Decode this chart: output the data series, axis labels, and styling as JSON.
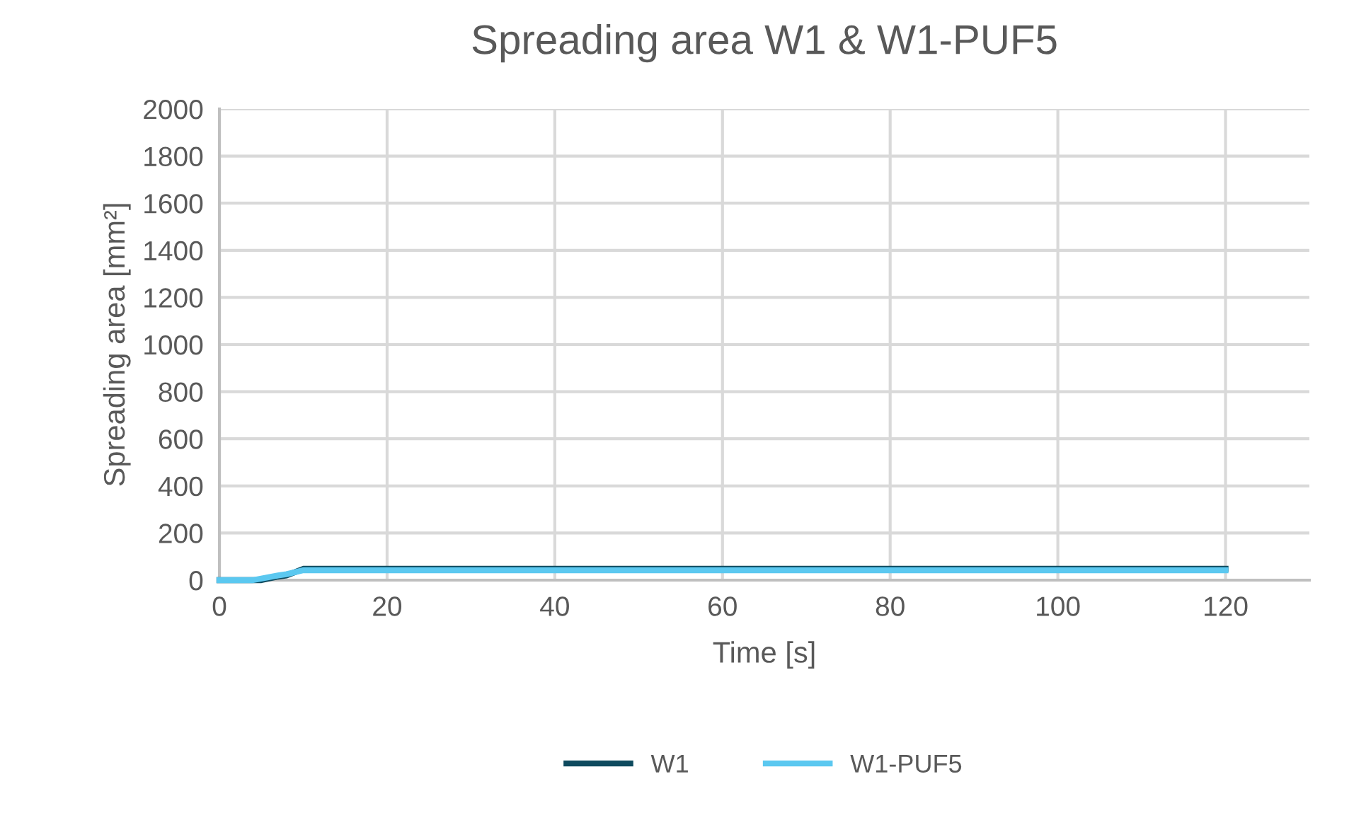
{
  "chart_data": {
    "type": "line",
    "title": "Spreading area W1 & W1-PUF5",
    "xlabel": "Time [s]",
    "ylabel": "Spreading area [mm²]",
    "xlim": [
      0,
      130
    ],
    "xticks": [
      0,
      20,
      40,
      60,
      80,
      100,
      120
    ],
    "ylim": [
      0,
      2000
    ],
    "yticks": [
      0,
      200,
      400,
      600,
      800,
      1000,
      1200,
      1400,
      1600,
      1800,
      2000
    ],
    "grid": true,
    "legend": "bottom",
    "marker": "none",
    "line_style": "solid",
    "series": [
      {
        "name": "W1",
        "color": "#0e4a5e",
        "x": [
          0,
          5,
          7,
          8,
          10,
          120
        ],
        "values": [
          0,
          0,
          15,
          20,
          48,
          48
        ]
      },
      {
        "name": "W1-PUF5",
        "color": "#5bc8f0",
        "x": [
          0,
          4,
          7,
          8,
          10,
          120
        ],
        "values": [
          0,
          0,
          20,
          25,
          42,
          42
        ]
      }
    ]
  }
}
